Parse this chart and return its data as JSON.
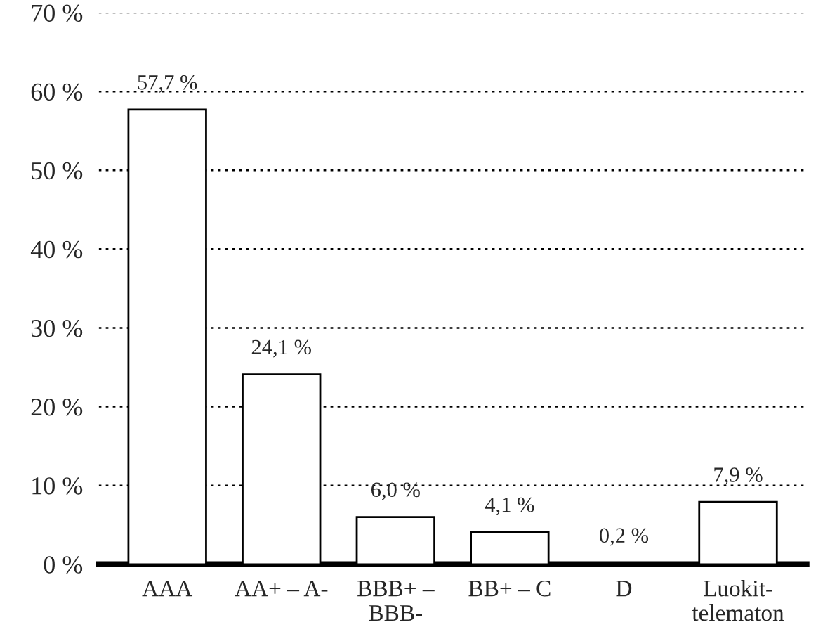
{
  "chart_data": {
    "type": "bar",
    "categories": [
      "AAA",
      "AA+ – A-",
      "BBB+ –\nBBB-",
      "BB+ – C",
      "D",
      "Luokit-\ntelematon"
    ],
    "values": [
      57.7,
      24.1,
      6.0,
      4.1,
      0.2,
      7.9
    ],
    "value_labels": [
      "57,7 %",
      "24,1 %",
      "6,0 %",
      "4,1 %",
      "0,2 %",
      "7,9 %"
    ],
    "color": "#ffffff",
    "ylim": [
      0,
      70
    ],
    "yticks": [
      {
        "value": 0,
        "label": "0 %"
      },
      {
        "value": 10,
        "label": "10 %"
      },
      {
        "value": 20,
        "label": "20 %"
      },
      {
        "value": 30,
        "label": "30 %"
      },
      {
        "value": 40,
        "label": "40 %"
      },
      {
        "value": 50,
        "label": "50 %"
      },
      {
        "value": 60,
        "label": "60 %"
      },
      {
        "value": 70,
        "label": "70 %"
      }
    ],
    "grid": "y",
    "legend": false
  }
}
